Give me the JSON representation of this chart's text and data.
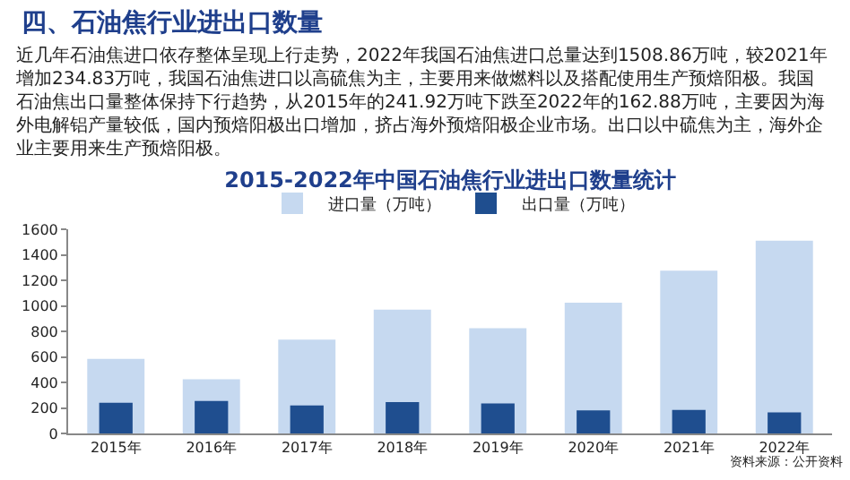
{
  "chart_data": {
    "type": "bar",
    "title": "2015-2022年中国石油焦行业进出口数量统计",
    "annotations": [
      "四、石油焦行业进出口数量",
      "近几年石油焦进口依存整体呈现上行走势，2022年我国石油焦进口总量达到1508.86万吨，较2021年增加234.83万吨，我国石油焦进口以高硫焦为主，主要用来做燃料以及搭配使用生产预焙阳极。我国石油焦出口量整体保持下行趋势，从2015年的241.92万吨下跌至2022年的162.88万吨，主要因为海外电解铝产量较低，国内预焙阳极出口增加，挤占海外预焙阳极企业市场。出口以中硫焦为主，海外企业主要用来生产预焙阳极。",
      "资料来源：公开资料"
    ],
    "categories": [
      "2015年",
      "2016年",
      "2017年",
      "2018年",
      "2019年",
      "2020年",
      "2021年",
      "2022年"
    ],
    "series": [
      {
        "name": "进口量（万吨）",
        "color": "#c6d9f0",
        "values": [
          585,
          425,
          735,
          970,
          825,
          1025,
          1275,
          1510
        ]
      },
      {
        "name": "出口量（万吨）",
        "color": "#1f4e8f",
        "values": [
          240,
          255,
          220,
          245,
          235,
          180,
          185,
          165
        ]
      }
    ],
    "ylim": [
      0,
      1600
    ],
    "yticks": [
      0,
      200,
      400,
      600,
      800,
      1000,
      1200,
      1400,
      1600
    ],
    "legend": "top"
  }
}
